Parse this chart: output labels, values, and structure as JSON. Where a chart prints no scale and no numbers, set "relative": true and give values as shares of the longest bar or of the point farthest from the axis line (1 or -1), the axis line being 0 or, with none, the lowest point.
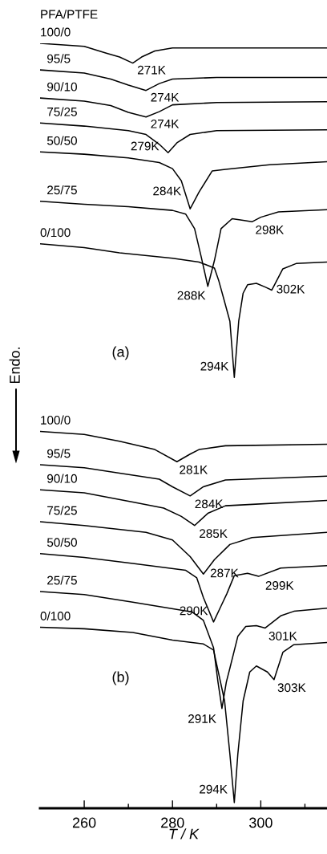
{
  "chart_data": {
    "type": "line",
    "relative": true,
    "legend_title": "PFA/PTFE",
    "ylabel": "Endo.",
    "xlabel": "T / K",
    "xlim": [
      250,
      315
    ],
    "xticks": [
      260,
      {
        "value": 270,
        "label": null
      },
      280,
      {
        "value": 290,
        "label": null
      },
      300,
      {
        "value": 310,
        "label": null
      }
    ],
    "tick_labels": "x",
    "legend": false,
    "grid": false,
    "line_style": "solid",
    "marker": "none",
    "series": [
      {
        "name": "100/0",
        "color": "#000000",
        "x": [
          250,
          260,
          265,
          268,
          271,
          273,
          276,
          280,
          290,
          315
        ],
        "values": [
          1.0,
          0.996,
          0.987,
          0.982,
          0.974,
          0.982,
          0.99,
          0.994,
          0.994,
          0.994
        ]
      },
      {
        "name": "95/5",
        "color": "#000000",
        "x": [
          250,
          260,
          266,
          270,
          274,
          277,
          280,
          290,
          315
        ],
        "values": [
          0.965,
          0.961,
          0.953,
          0.945,
          0.938,
          0.947,
          0.953,
          0.955,
          0.955
        ]
      },
      {
        "name": "90/10",
        "color": "#000000",
        "x": [
          250,
          260,
          266,
          270,
          274,
          277,
          280,
          290,
          315
        ],
        "values": [
          0.928,
          0.924,
          0.918,
          0.909,
          0.903,
          0.91,
          0.919,
          0.922,
          0.923
        ]
      },
      {
        "name": "75/25",
        "color": "#000000",
        "x": [
          250,
          260,
          270,
          274,
          277,
          279,
          281,
          284,
          290,
          315
        ],
        "values": [
          0.895,
          0.891,
          0.885,
          0.88,
          0.867,
          0.856,
          0.869,
          0.88,
          0.885,
          0.886
        ]
      },
      {
        "name": "50/50",
        "color": "#000000",
        "x": [
          250,
          260,
          270,
          277,
          280,
          282,
          284,
          286,
          289,
          292,
          302,
          315
        ],
        "values": [
          0.857,
          0.854,
          0.849,
          0.843,
          0.835,
          0.819,
          0.782,
          0.804,
          0.832,
          0.834,
          0.84,
          0.844
        ]
      },
      {
        "name": "25/75",
        "color": "#000000",
        "x": [
          250,
          260,
          270,
          280,
          283,
          285,
          286.5,
          288,
          289.5,
          291,
          293.5,
          296,
          298,
          300,
          304,
          315
        ],
        "values": [
          0.792,
          0.788,
          0.785,
          0.78,
          0.775,
          0.756,
          0.719,
          0.68,
          0.714,
          0.756,
          0.769,
          0.767,
          0.765,
          0.771,
          0.778,
          0.781
        ]
      },
      {
        "name": "0/100",
        "color": "#000000",
        "x": [
          250,
          260,
          268,
          280,
          286,
          289.5,
          290.5,
          291.5,
          293,
          294,
          295,
          296,
          297,
          299,
          301,
          302.5,
          305,
          308,
          315
        ],
        "values": [
          0.736,
          0.731,
          0.724,
          0.717,
          0.712,
          0.704,
          0.687,
          0.666,
          0.634,
          0.56,
          0.634,
          0.671,
          0.682,
          0.684,
          0.679,
          0.675,
          0.703,
          0.71,
          0.712
        ]
      },
      {
        "name": "100/0",
        "color": "#000000",
        "x": [
          250,
          260,
          268,
          276,
          281,
          284,
          286,
          292,
          315
        ],
        "values": [
          0.489,
          0.485,
          0.476,
          0.465,
          0.449,
          0.459,
          0.465,
          0.47,
          0.472
        ]
      },
      {
        "name": "95/5",
        "color": "#000000",
        "x": [
          250,
          260,
          268,
          277,
          280,
          284,
          287,
          292,
          315
        ],
        "values": [
          0.445,
          0.441,
          0.434,
          0.426,
          0.416,
          0.404,
          0.416,
          0.425,
          0.43
        ]
      },
      {
        "name": "90/10",
        "color": "#000000",
        "x": [
          250,
          260,
          271,
          278,
          282,
          285,
          288,
          292,
          315
        ],
        "values": [
          0.412,
          0.408,
          0.396,
          0.388,
          0.377,
          0.365,
          0.381,
          0.391,
          0.398
        ]
      },
      {
        "name": "75/25",
        "color": "#000000",
        "x": [
          250,
          260,
          274,
          280,
          284,
          287,
          289.5,
          293,
          298,
          315
        ],
        "values": [
          0.37,
          0.365,
          0.356,
          0.346,
          0.324,
          0.301,
          0.32,
          0.34,
          0.349,
          0.356
        ]
      },
      {
        "name": "50/50",
        "color": "#000000",
        "x": [
          250,
          260,
          271,
          283,
          285.5,
          287,
          289.3,
          291,
          292.3,
          294,
          297,
          299.5,
          304.5,
          315
        ],
        "values": [
          0.328,
          0.323,
          0.315,
          0.306,
          0.296,
          0.27,
          0.238,
          0.259,
          0.275,
          0.299,
          0.302,
          0.298,
          0.309,
          0.312
        ]
      },
      {
        "name": "25/75",
        "color": "#000000",
        "x": [
          250,
          260,
          271,
          284.5,
          287,
          289.3,
          290.3,
          291.2,
          292.2,
          293,
          294.8,
          296.6,
          299,
          301,
          304.5,
          307.5,
          315
        ],
        "values": [
          0.278,
          0.274,
          0.264,
          0.251,
          0.24,
          0.204,
          0.159,
          0.124,
          0.159,
          0.177,
          0.219,
          0.232,
          0.233,
          0.23,
          0.246,
          0.252,
          0.256
        ]
      },
      {
        "name": "0/100",
        "color": "#000000",
        "x": [
          250,
          260,
          271,
          280,
          287,
          289.3,
          291.8,
          293,
          294,
          294.8,
          296,
          297.5,
          299,
          301.5,
          303,
          305,
          307.5,
          315
        ],
        "values": [
          0.231,
          0.229,
          0.224,
          0.214,
          0.209,
          0.201,
          0.134,
          0.064,
          0.0,
          0.064,
          0.134,
          0.172,
          0.18,
          0.172,
          0.162,
          0.198,
          0.208,
          0.211
        ]
      }
    ],
    "annotations": [
      {
        "text": "271K",
        "x": 271,
        "y": 0.974
      },
      {
        "text": "274K",
        "x": 274,
        "y": 0.938
      },
      {
        "text": "274K",
        "x": 274,
        "y": 0.903
      },
      {
        "text": "279K",
        "x": 279,
        "y": 0.856
      },
      {
        "text": "284K",
        "x": 284,
        "y": 0.782
      },
      {
        "text": "298K",
        "x": 298,
        "y": 0.765
      },
      {
        "text": "288K",
        "x": 288,
        "y": 0.68
      },
      {
        "text": "302K",
        "x": 302.5,
        "y": 0.675
      },
      {
        "text": "294K",
        "x": 294,
        "y": 0.56
      },
      {
        "text": "281K",
        "x": 281,
        "y": 0.449
      },
      {
        "text": "284K",
        "x": 284,
        "y": 0.404
      },
      {
        "text": "285K",
        "x": 285,
        "y": 0.365
      },
      {
        "text": "287K",
        "x": 287,
        "y": 0.301
      },
      {
        "text": "299K",
        "x": 299.5,
        "y": 0.298
      },
      {
        "text": "290K",
        "x": 289.3,
        "y": 0.238
      },
      {
        "text": "301K",
        "x": 301,
        "y": 0.23
      },
      {
        "text": "303K",
        "x": 303,
        "y": 0.162
      },
      {
        "text": "291K",
        "x": 291.2,
        "y": 0.124
      },
      {
        "text": "294K",
        "x": 294,
        "y": 0.0
      },
      "(a)",
      "(b)"
    ]
  }
}
